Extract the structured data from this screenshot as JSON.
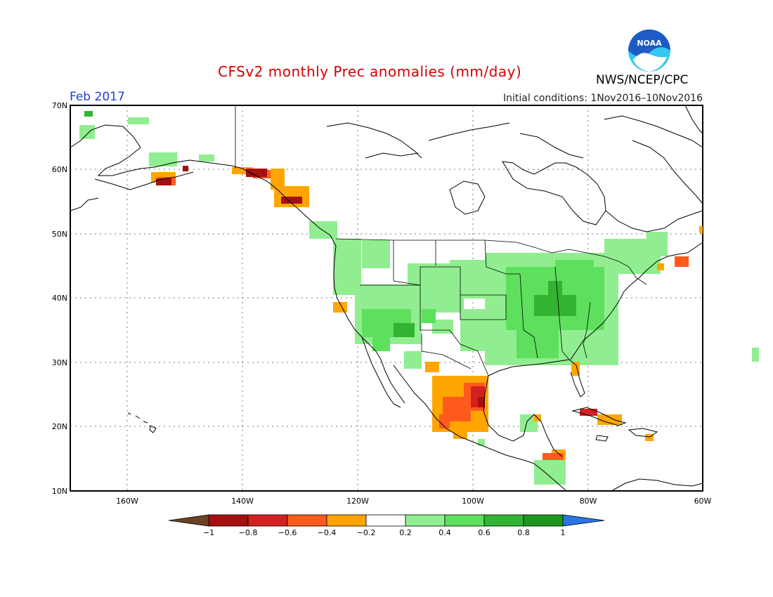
{
  "title": "CFSv2 monthly Prec anomalies (mm/day)",
  "month": "Feb 2017",
  "initial_conditions": "Initial conditions: 1Nov2016–10Nov2016",
  "agency": "NWS/NCEP/CPC",
  "logo": {
    "text": "NOAA",
    "icon": "noaa-logo-icon",
    "colors": [
      "#1e5bc6",
      "#34c8f0",
      "#ffffff"
    ]
  },
  "map": {
    "lat_ticks": [
      "70N",
      "60N",
      "50N",
      "40N",
      "30N",
      "20N",
      "10N"
    ],
    "lon_ticks": [
      "160W",
      "140W",
      "120W",
      "100W",
      "80W",
      "60W"
    ]
  },
  "colorbar": {
    "labels": [
      "−1",
      "−0.8",
      "−0.6",
      "−0.4",
      "−0.2",
      "0.2",
      "0.4",
      "0.6",
      "0.8",
      "1"
    ],
    "colors": [
      "#6b4226",
      "#a50f0f",
      "#d52020",
      "#ff5a1e",
      "#ffa500",
      "#ffffff",
      "#90ee90",
      "#5ee05e",
      "#32b432",
      "#1e961e",
      "#2a74e6"
    ]
  }
}
